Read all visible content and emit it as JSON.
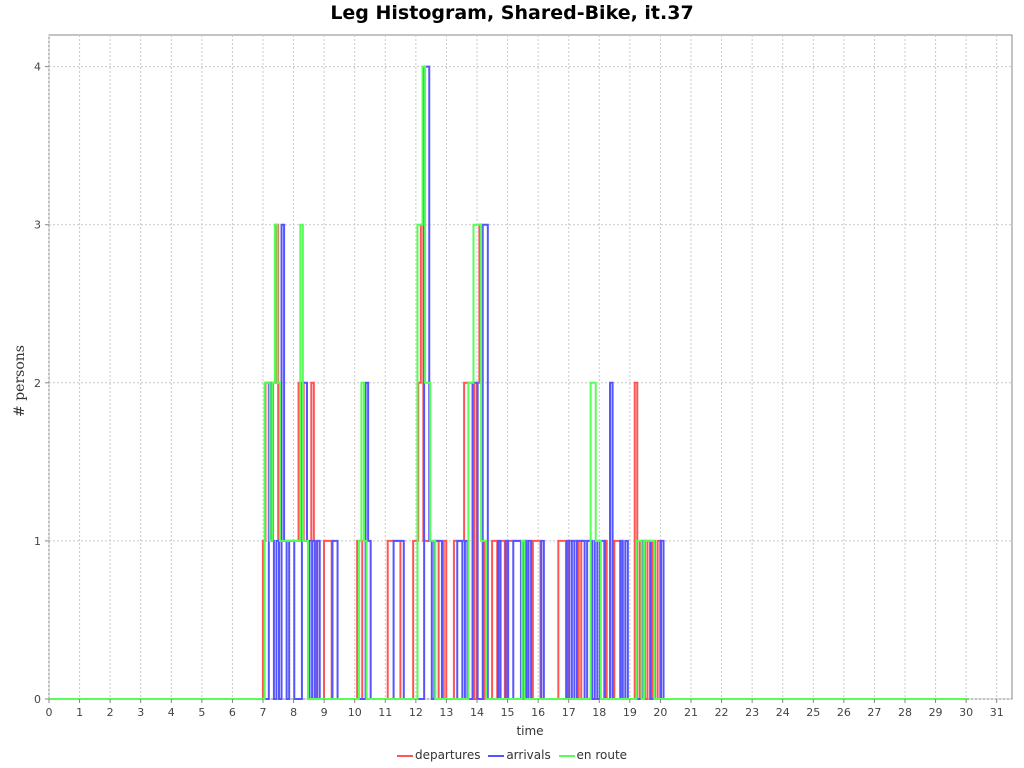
{
  "chart_data": {
    "type": "line",
    "title": "Leg Histogram, Shared-Bike, it.37",
    "xlabel": "time",
    "ylabel": "# persons",
    "xlim": [
      0,
      31.5
    ],
    "ylim": [
      0,
      4.2
    ],
    "xticks": [
      0,
      1,
      2,
      3,
      4,
      5,
      6,
      7,
      8,
      9,
      10,
      11,
      12,
      13,
      14,
      15,
      16,
      17,
      18,
      19,
      20,
      21,
      22,
      23,
      24,
      25,
      26,
      27,
      28,
      29,
      30,
      31
    ],
    "yticks": [
      0,
      1,
      2,
      3,
      4
    ],
    "grid": true,
    "legend_position": "bottom",
    "bin_width_hours": 0.0833,
    "series": [
      {
        "name": "departures",
        "color": "#ff5555",
        "values": {
          "7": 1,
          "7.08": 2,
          "7.17": 2,
          "7.25": 1,
          "7.33": 2,
          "7.42": 3,
          "7.5": 1,
          "7.58": 1,
          "7.67": 1,
          "7.75": 1,
          "7.83": 1,
          "7.92": 1,
          "8": 1,
          "8.08": 1,
          "8.17": 2,
          "8.25": 2,
          "8.33": 1,
          "8.42": 1,
          "8.5": 1,
          "8.58": 2,
          "8.67": 1,
          "9": 1,
          "9.08": 1,
          "9.17": 1,
          "10.08": 1,
          "10.17": 1,
          "11.08": 1,
          "11.17": 1,
          "11.25": 1,
          "11.33": 1,
          "11.42": 1,
          "11.92": 1,
          "12": 1,
          "12.08": 2,
          "12.17": 3,
          "12.25": 1,
          "12.33": 1,
          "12.42": 1,
          "12.5": 1,
          "12.58": 1,
          "12.67": 1,
          "12.92": 1,
          "13.25": 1,
          "13.33": 1,
          "13.42": 1,
          "13.5": 1,
          "13.58": 2,
          "13.67": 2,
          "13.75": 2,
          "13.83": 2,
          "14": 2,
          "14.08": 3,
          "14.17": 1,
          "14.5": 1,
          "14.58": 1,
          "14.75": 1,
          "14.83": 1,
          "15": 1,
          "15.08": 1,
          "15.17": 1,
          "15.25": 1,
          "15.33": 1,
          "15.42": 1,
          "15.58": 1,
          "15.83": 1,
          "15.92": 1,
          "16": 1,
          "16.67": 1,
          "16.75": 1,
          "16.83": 1,
          "17": 1,
          "17.08": 1,
          "17.17": 1,
          "17.25": 1,
          "17.42": 1,
          "17.5": 1,
          "17.58": 1,
          "17.67": 1,
          "18.17": 1,
          "18.5": 1,
          "18.58": 1,
          "18.67": 1,
          "19.17": 2,
          "19.33": 1,
          "19.42": 1,
          "19.58": 1,
          "19.75": 1,
          "19.92": 1
        }
      },
      {
        "name": "arrivals",
        "color": "#5555ff",
        "values": {
          "7.17": 2,
          "7.25": 1,
          "7.42": 1,
          "7.58": 3,
          "7.67": 1,
          "7.83": 1,
          "7.92": 1,
          "8.25": 2,
          "8.33": 2,
          "8.42": 1,
          "8.58": 1,
          "8.75": 1,
          "9.25": 1,
          "9.33": 1,
          "10.33": 2,
          "10.42": 1,
          "11.25": 1,
          "11.33": 1,
          "11.42": 1,
          "11.5": 1,
          "12.25": 4,
          "12.33": 4,
          "12.42": 1,
          "12.58": 1,
          "12.67": 1,
          "12.75": 1,
          "13.33": 1,
          "13.42": 1,
          "13.58": 1,
          "13.83": 2,
          "13.92": 2,
          "14.17": 3,
          "14.25": 3,
          "14.67": 1,
          "14.92": 1,
          "15.17": 1,
          "15.25": 1,
          "15.33": 1,
          "15.5": 1,
          "15.67": 1,
          "16.08": 1,
          "16.92": 1,
          "17.08": 1,
          "17.25": 1,
          "17.33": 1,
          "17.42": 1,
          "17.58": 1,
          "17.67": 1,
          "17.83": 1,
          "18": 1,
          "18.08": 1,
          "18.33": 2,
          "18.67": 1,
          "18.83": 1,
          "19.42": 1,
          "19.5": 1,
          "19.58": 1,
          "20": 1
        }
      },
      {
        "name": "en route",
        "color": "#55ff55",
        "values": {
          "7.08": 2,
          "7.17": 2,
          "7.25": 1,
          "7.33": 2,
          "7.42": 3,
          "7.5": 2,
          "7.58": 1,
          "7.67": 1,
          "7.75": 1,
          "7.83": 1,
          "7.92": 1,
          "8": 1,
          "8.08": 1,
          "8.17": 1,
          "8.25": 3,
          "8.33": 1,
          "8.42": 1,
          "10.17": 1,
          "10.25": 2,
          "10.33": 1,
          "12.08": 3,
          "12.17": 3,
          "12.25": 4,
          "12.33": 2,
          "12.42": 2,
          "12.5": 1,
          "12.58": 1,
          "13.75": 2,
          "13.83": 2,
          "13.92": 3,
          "14": 3,
          "14.08": 3,
          "14.17": 1,
          "14.25": 1,
          "15.5": 1,
          "17.75": 2,
          "17.83": 2,
          "17.92": 1,
          "18": 1,
          "19.25": 1,
          "19.33": 1,
          "19.5": 1,
          "19.58": 1,
          "19.67": 1,
          "19.75": 1
        }
      }
    ]
  }
}
